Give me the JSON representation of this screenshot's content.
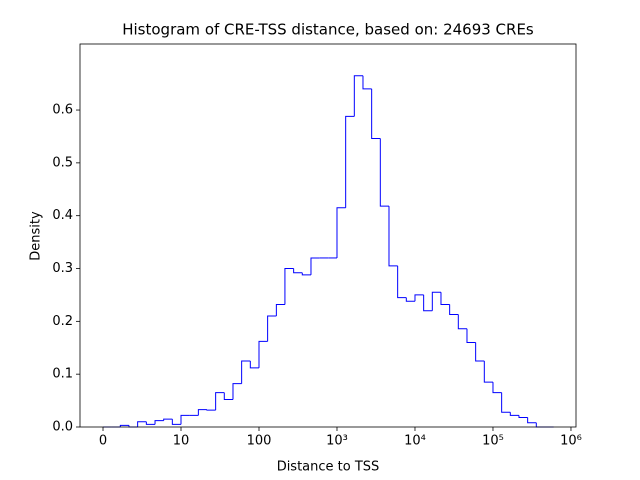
{
  "chart_data": {
    "type": "histogram",
    "title": "Histogram of CRE-TSS distance, based on: 24693 CREs",
    "x_label": "Distance to TSS",
    "y_label": "Density",
    "color": "#0000ff",
    "xscale": "symlog",
    "linthresh": 10,
    "bins": [
      0,
      1.11,
      2.22,
      3.33,
      4.44,
      5.56,
      6.67,
      7.78,
      8.89,
      10,
      12.9,
      16.7,
      21.5,
      27.8,
      35.9,
      46.4,
      59.9,
      77.4,
      100,
      129,
      167,
      215,
      278,
      359,
      464,
      599,
      774,
      1000,
      1292,
      1668,
      2154,
      2783,
      3594,
      4642,
      5995,
      7743,
      10000,
      12915,
      16681,
      21544,
      27826,
      35938,
      46416,
      59948,
      77426,
      100000,
      129155,
      166810,
      215443,
      278256,
      359381,
      464159,
      599484
    ],
    "values": [
      0,
      0,
      0.003,
      0,
      0.01,
      0.005,
      0.012,
      0.015,
      0.005,
      0.022,
      0.022,
      0.033,
      0.032,
      0.065,
      0.052,
      0.082,
      0.125,
      0.112,
      0.162,
      0.21,
      0.232,
      0.3,
      0.292,
      0.288,
      0.32,
      0.32,
      0.32,
      0.415,
      0.588,
      0.665,
      0.64,
      0.546,
      0.418,
      0.305,
      0.245,
      0.238,
      0.25,
      0.22,
      0.255,
      0.232,
      0.213,
      0.186,
      0.16,
      0.125,
      0.085,
      0.065,
      0.028,
      0.022,
      0.018,
      0.008,
      0,
      0
    ],
    "xlim": [
      -2.95,
      1160000
    ],
    "ylim": [
      0,
      0.725
    ],
    "xticks": [
      {
        "value": 0,
        "label": "0"
      },
      10,
      100,
      {
        "value": 1000,
        "label": "10³"
      },
      {
        "value": 10000,
        "label": "10⁴"
      },
      {
        "value": 100000,
        "label": "10⁵"
      },
      {
        "value": 1000000,
        "label": "10⁶"
      }
    ],
    "yticks": [
      {
        "value": 0,
        "label": "0.0"
      },
      0.1,
      0.2,
      0.3,
      0.4,
      0.5,
      0.6
    ]
  }
}
